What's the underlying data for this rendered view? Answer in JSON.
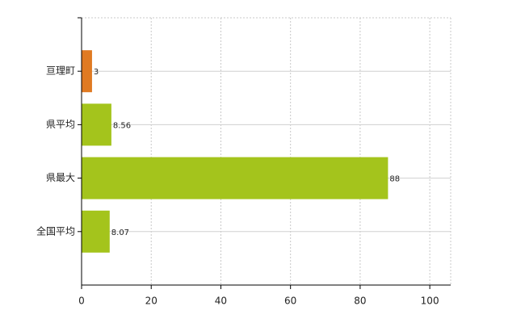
{
  "chart_data": {
    "type": "bar",
    "orientation": "horizontal",
    "categories": [
      "亘理町",
      "県平均",
      "県最大",
      "全国平均"
    ],
    "values": [
      3,
      8.56,
      88,
      8.07
    ],
    "colors": [
      "#e07a22",
      "#a4c41c",
      "#a4c41c",
      "#a4c41c"
    ],
    "xlim": [
      0,
      106
    ],
    "xticks": [
      0,
      20,
      40,
      60,
      80,
      100
    ],
    "grid": true
  }
}
